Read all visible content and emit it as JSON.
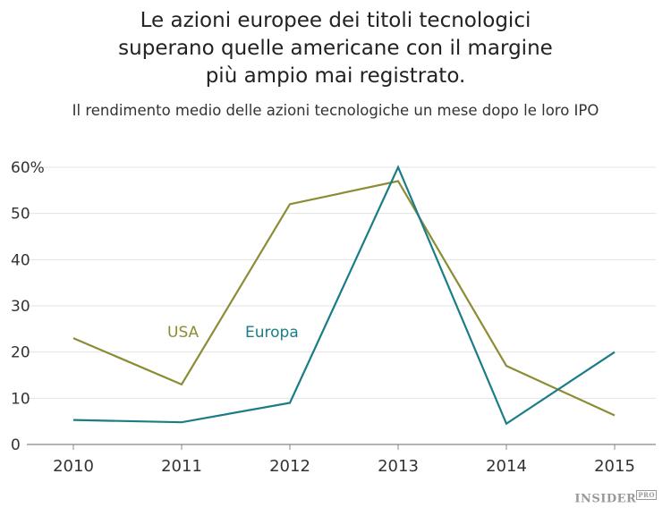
{
  "title_lines": [
    "Le azioni europee dei titoli tecnologici",
    "superano quelle americane con il margine",
    "più ampio mai registrato."
  ],
  "subtitle": "Il rendimento medio delle azioni tecnologiche un mese dopo le loro IPO",
  "watermark": {
    "main": "INSIDER",
    "suffix": "PRO"
  },
  "chart_data": {
    "type": "line",
    "title": "Le azioni europee dei titoli tecnologici superano quelle americane con il margine più ampio mai registrato.",
    "subtitle": "Il rendimento medio delle azioni tecnologiche un mese dopo le loro IPO",
    "x": [
      "2010",
      "2011",
      "2012",
      "2013",
      "2014",
      "2015"
    ],
    "ylim": [
      0,
      60
    ],
    "yticks": [
      0,
      10,
      20,
      30,
      40,
      50,
      60
    ],
    "ytick_labels": [
      "0",
      "10",
      "20",
      "30",
      "40",
      "50",
      "60%"
    ],
    "grid": "horizontal",
    "legend": "inline labels",
    "series": [
      {
        "name": "USA",
        "color": "#8c8c35",
        "values": [
          23,
          13,
          52,
          57,
          17,
          6.3
        ]
      },
      {
        "name": "Europa",
        "color": "#1a7d85",
        "values": [
          5.3,
          4.8,
          9,
          60,
          4.5,
          20
        ]
      }
    ]
  }
}
